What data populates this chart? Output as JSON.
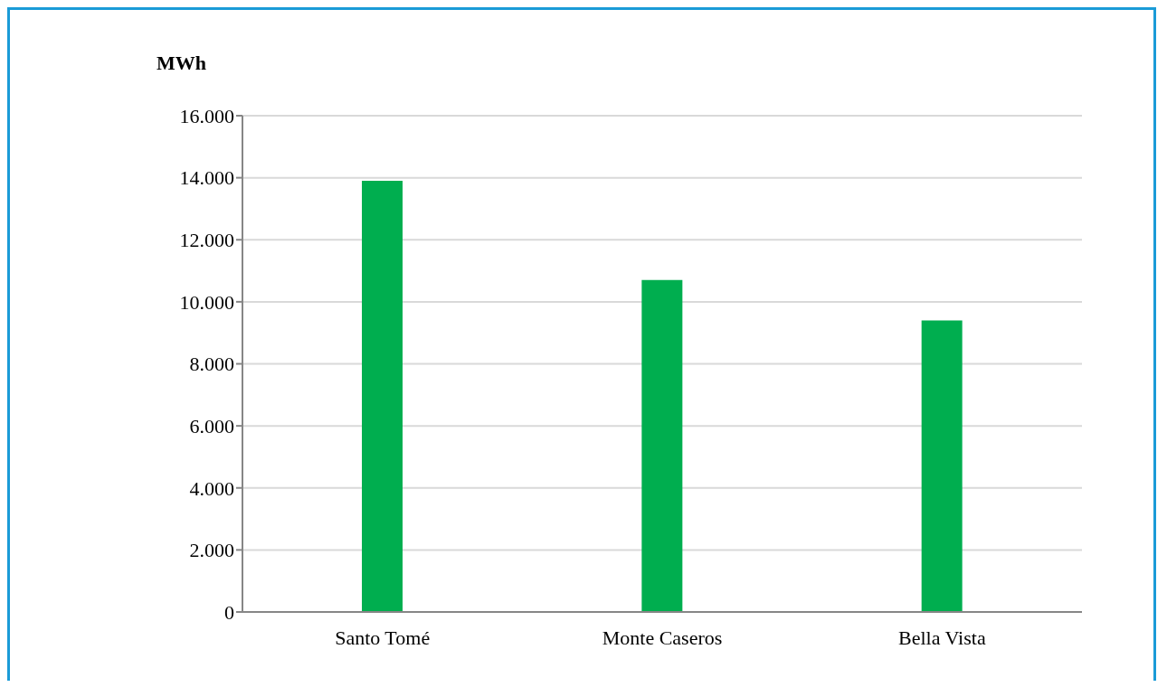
{
  "chart_data": {
    "type": "bar",
    "ylabel": "MWh",
    "categories": [
      "Santo Tomé",
      "Monte Caseros",
      "Bella Vista"
    ],
    "values": [
      13900,
      10700,
      9400
    ],
    "color": "#00ae4f",
    "ylim": [
      0,
      16000
    ],
    "yticks": [
      0,
      {
        "value": 2000,
        "label": "2.000"
      },
      {
        "value": 4000,
        "label": "4.000"
      },
      {
        "value": 6000,
        "label": "6.000"
      },
      {
        "value": 8000,
        "label": "8.000"
      },
      {
        "value": 10000,
        "label": "10.000"
      },
      {
        "value": 12000,
        "label": "12.000"
      },
      {
        "value": 14000,
        "label": "14.000"
      },
      {
        "value": 16000,
        "label": "16.000"
      }
    ],
    "grid": "y"
  }
}
